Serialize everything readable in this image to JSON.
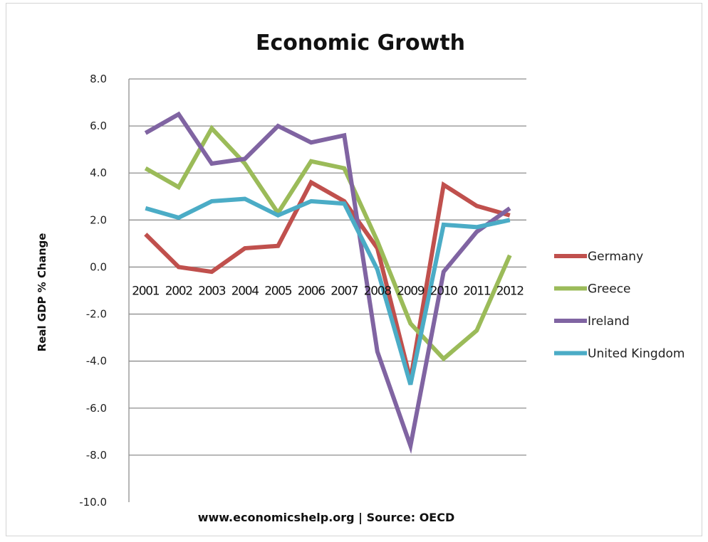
{
  "chart_data": {
    "type": "line",
    "title": "Economic Growth",
    "xlabel": "",
    "ylabel": "Real GDP % Change",
    "source": "www.economicshelp.org | Source: OECD",
    "ylim": [
      -10,
      8
    ],
    "ytick_step": 2,
    "ytick_labels": [
      "8.0",
      "6.0",
      "4.0",
      "2.0",
      "0.0",
      "-2.0",
      "-4.0",
      "-6.0",
      "-8.0",
      "-10.0"
    ],
    "categories": [
      "2001",
      "2002",
      "2003",
      "2004",
      "2005",
      "2006",
      "2007",
      "2008",
      "2009",
      "2010",
      "2011",
      "2012"
    ],
    "grid": true,
    "legend_position": "right",
    "series": [
      {
        "name": "Germany",
        "color": "#c0504d",
        "values": [
          1.4,
          0.0,
          -0.2,
          0.8,
          0.9,
          3.6,
          2.8,
          0.8,
          -4.8,
          3.5,
          2.6,
          2.2
        ]
      },
      {
        "name": "Greece",
        "color": "#9bbb59",
        "values": [
          4.2,
          3.4,
          5.9,
          4.4,
          2.3,
          4.5,
          4.2,
          1.1,
          -2.4,
          -3.9,
          -2.7,
          0.5
        ]
      },
      {
        "name": "Ireland",
        "color": "#8064a2",
        "values": [
          5.7,
          6.5,
          4.4,
          4.6,
          6.0,
          5.3,
          5.6,
          -3.6,
          -7.6,
          -0.2,
          1.5,
          2.5
        ]
      },
      {
        "name": "United Kingdom",
        "color": "#4bacc6",
        "values": [
          2.5,
          2.1,
          2.8,
          2.9,
          2.2,
          2.8,
          2.7,
          -0.1,
          -5.0,
          1.8,
          1.7,
          2.0
        ]
      }
    ]
  }
}
